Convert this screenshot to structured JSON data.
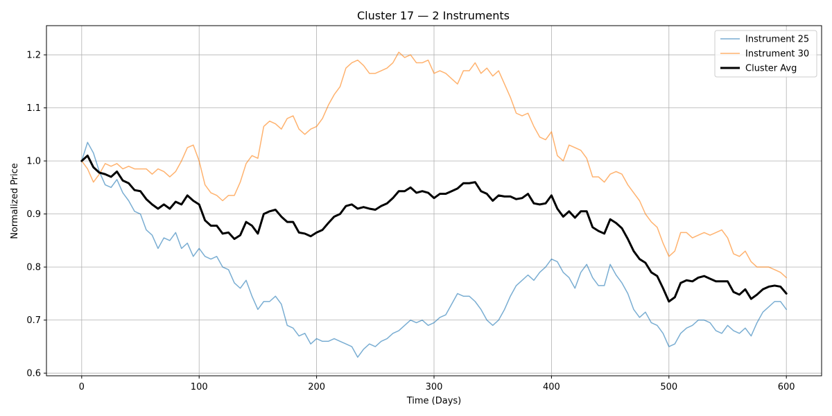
{
  "chart_data": {
    "type": "line",
    "title": "Cluster 17 — 2 Instruments",
    "xlabel": "Time (Days)",
    "ylabel": "Normalized Price",
    "xlim": [
      -30,
      630
    ],
    "ylim": [
      0.595,
      1.255
    ],
    "xticks": [
      0,
      100,
      200,
      300,
      400,
      500,
      600
    ],
    "yticks": [
      0.6,
      0.7,
      0.8,
      0.9,
      1.0,
      1.1,
      1.2
    ],
    "xtick_labels": [
      "0",
      "100",
      "200",
      "300",
      "400",
      "500",
      "600"
    ],
    "ytick_labels": [
      "0.6",
      "0.7",
      "0.8",
      "0.9",
      "1.0",
      "1.1",
      "1.2"
    ],
    "grid": true,
    "legend_position": "upper right",
    "series": [
      {
        "name": "Instrument 25",
        "color": "#1f77b4",
        "opacity": 0.6,
        "width": 1.5,
        "x": [
          0,
          5,
          10,
          15,
          20,
          25,
          30,
          35,
          40,
          45,
          50,
          55,
          60,
          65,
          70,
          75,
          80,
          85,
          90,
          95,
          100,
          105,
          110,
          115,
          120,
          125,
          130,
          135,
          140,
          145,
          150,
          155,
          160,
          165,
          170,
          175,
          180,
          185,
          190,
          195,
          200,
          205,
          210,
          215,
          220,
          225,
          230,
          235,
          240,
          245,
          250,
          255,
          260,
          265,
          270,
          275,
          280,
          285,
          290,
          295,
          300,
          305,
          310,
          315,
          320,
          325,
          330,
          335,
          340,
          345,
          350,
          355,
          360,
          365,
          370,
          375,
          380,
          385,
          390,
          395,
          400,
          405,
          410,
          415,
          420,
          425,
          430,
          435,
          440,
          445,
          450,
          455,
          460,
          465,
          470,
          475,
          480,
          485,
          490,
          495,
          500,
          505,
          510,
          515,
          520,
          525,
          530,
          535,
          540,
          545,
          550,
          555,
          560,
          565,
          570,
          575,
          580,
          585,
          590,
          595,
          600
        ],
        "values": [
          1.0,
          1.035,
          1.015,
          0.98,
          0.955,
          0.95,
          0.965,
          0.94,
          0.925,
          0.905,
          0.9,
          0.87,
          0.86,
          0.835,
          0.855,
          0.85,
          0.865,
          0.835,
          0.845,
          0.82,
          0.835,
          0.82,
          0.815,
          0.82,
          0.8,
          0.795,
          0.77,
          0.76,
          0.775,
          0.745,
          0.72,
          0.735,
          0.735,
          0.745,
          0.73,
          0.69,
          0.685,
          0.67,
          0.675,
          0.655,
          0.665,
          0.66,
          0.66,
          0.665,
          0.66,
          0.655,
          0.65,
          0.63,
          0.645,
          0.655,
          0.65,
          0.66,
          0.665,
          0.675,
          0.68,
          0.69,
          0.7,
          0.695,
          0.7,
          0.69,
          0.695,
          0.705,
          0.71,
          0.73,
          0.75,
          0.745,
          0.745,
          0.735,
          0.72,
          0.7,
          0.69,
          0.7,
          0.72,
          0.745,
          0.765,
          0.775,
          0.785,
          0.775,
          0.79,
          0.8,
          0.815,
          0.81,
          0.79,
          0.78,
          0.76,
          0.79,
          0.805,
          0.78,
          0.765,
          0.765,
          0.805,
          0.785,
          0.77,
          0.75,
          0.72,
          0.705,
          0.715,
          0.695,
          0.69,
          0.675,
          0.65,
          0.655,
          0.675,
          0.685,
          0.69,
          0.7,
          0.7,
          0.695,
          0.68,
          0.675,
          0.69,
          0.68,
          0.675,
          0.685,
          0.67,
          0.695,
          0.715,
          0.725,
          0.735,
          0.735,
          0.72
        ]
      },
      {
        "name": "Instrument 30",
        "color": "#ff7f0e",
        "opacity": 0.6,
        "width": 1.5,
        "x": [
          0,
          5,
          10,
          15,
          20,
          25,
          30,
          35,
          40,
          45,
          50,
          55,
          60,
          65,
          70,
          75,
          80,
          85,
          90,
          95,
          100,
          105,
          110,
          115,
          120,
          125,
          130,
          135,
          140,
          145,
          150,
          155,
          160,
          165,
          170,
          175,
          180,
          185,
          190,
          195,
          200,
          205,
          210,
          215,
          220,
          225,
          230,
          235,
          240,
          245,
          250,
          255,
          260,
          265,
          270,
          275,
          280,
          285,
          290,
          295,
          300,
          305,
          310,
          315,
          320,
          325,
          330,
          335,
          340,
          345,
          350,
          355,
          360,
          365,
          370,
          375,
          380,
          385,
          390,
          395,
          400,
          405,
          410,
          415,
          420,
          425,
          430,
          435,
          440,
          445,
          450,
          455,
          460,
          465,
          470,
          475,
          480,
          485,
          490,
          495,
          500,
          505,
          510,
          515,
          520,
          525,
          530,
          535,
          540,
          545,
          550,
          555,
          560,
          565,
          570,
          575,
          580,
          585,
          590,
          595,
          600
        ],
        "values": [
          1.0,
          0.985,
          0.96,
          0.975,
          0.995,
          0.99,
          0.995,
          0.985,
          0.99,
          0.985,
          0.985,
          0.985,
          0.975,
          0.985,
          0.98,
          0.97,
          0.98,
          1.0,
          1.025,
          1.03,
          1.0,
          0.955,
          0.94,
          0.935,
          0.925,
          0.935,
          0.935,
          0.96,
          0.995,
          1.01,
          1.005,
          1.065,
          1.075,
          1.07,
          1.06,
          1.08,
          1.085,
          1.06,
          1.05,
          1.06,
          1.065,
          1.08,
          1.105,
          1.125,
          1.14,
          1.175,
          1.185,
          1.19,
          1.18,
          1.165,
          1.165,
          1.17,
          1.175,
          1.185,
          1.205,
          1.195,
          1.2,
          1.185,
          1.185,
          1.19,
          1.165,
          1.17,
          1.165,
          1.155,
          1.145,
          1.17,
          1.17,
          1.185,
          1.165,
          1.175,
          1.16,
          1.17,
          1.145,
          1.12,
          1.09,
          1.085,
          1.09,
          1.065,
          1.045,
          1.04,
          1.055,
          1.01,
          1.0,
          1.03,
          1.025,
          1.02,
          1.005,
          0.97,
          0.97,
          0.96,
          0.975,
          0.98,
          0.975,
          0.955,
          0.94,
          0.925,
          0.9,
          0.885,
          0.875,
          0.845,
          0.82,
          0.83,
          0.865,
          0.865,
          0.855,
          0.86,
          0.865,
          0.86,
          0.865,
          0.87,
          0.855,
          0.825,
          0.82,
          0.83,
          0.81,
          0.8,
          0.8,
          0.8,
          0.795,
          0.79,
          0.78
        ]
      },
      {
        "name": "Cluster Avg",
        "color": "#000000",
        "opacity": 1.0,
        "width": 3,
        "x": [
          0,
          5,
          10,
          15,
          20,
          25,
          30,
          35,
          40,
          45,
          50,
          55,
          60,
          65,
          70,
          75,
          80,
          85,
          90,
          95,
          100,
          105,
          110,
          115,
          120,
          125,
          130,
          135,
          140,
          145,
          150,
          155,
          160,
          165,
          170,
          175,
          180,
          185,
          190,
          195,
          200,
          205,
          210,
          215,
          220,
          225,
          230,
          235,
          240,
          245,
          250,
          255,
          260,
          265,
          270,
          275,
          280,
          285,
          290,
          295,
          300,
          305,
          310,
          315,
          320,
          325,
          330,
          335,
          340,
          345,
          350,
          355,
          360,
          365,
          370,
          375,
          380,
          385,
          390,
          395,
          400,
          405,
          410,
          415,
          420,
          425,
          430,
          435,
          440,
          445,
          450,
          455,
          460,
          465,
          470,
          475,
          480,
          485,
          490,
          495,
          500,
          505,
          510,
          515,
          520,
          525,
          530,
          535,
          540,
          545,
          550,
          555,
          560,
          565,
          570,
          575,
          580,
          585,
          590,
          595,
          600
        ],
        "values": [
          1.0,
          1.01,
          0.988,
          0.978,
          0.975,
          0.97,
          0.98,
          0.963,
          0.958,
          0.945,
          0.943,
          0.928,
          0.918,
          0.91,
          0.918,
          0.91,
          0.923,
          0.918,
          0.935,
          0.925,
          0.918,
          0.888,
          0.878,
          0.878,
          0.863,
          0.865,
          0.853,
          0.86,
          0.885,
          0.878,
          0.863,
          0.9,
          0.905,
          0.908,
          0.895,
          0.885,
          0.885,
          0.865,
          0.863,
          0.858,
          0.865,
          0.87,
          0.883,
          0.895,
          0.9,
          0.915,
          0.918,
          0.91,
          0.913,
          0.91,
          0.908,
          0.915,
          0.92,
          0.93,
          0.943,
          0.943,
          0.95,
          0.94,
          0.943,
          0.94,
          0.93,
          0.938,
          0.938,
          0.943,
          0.948,
          0.958,
          0.958,
          0.96,
          0.943,
          0.938,
          0.925,
          0.935,
          0.933,
          0.933,
          0.928,
          0.93,
          0.938,
          0.92,
          0.918,
          0.92,
          0.935,
          0.91,
          0.895,
          0.905,
          0.893,
          0.905,
          0.905,
          0.875,
          0.868,
          0.863,
          0.89,
          0.883,
          0.873,
          0.853,
          0.83,
          0.815,
          0.808,
          0.79,
          0.783,
          0.76,
          0.735,
          0.743,
          0.77,
          0.775,
          0.773,
          0.78,
          0.783,
          0.778,
          0.773,
          0.773,
          0.773,
          0.753,
          0.748,
          0.758,
          0.74,
          0.748,
          0.758,
          0.763,
          0.765,
          0.763,
          0.75
        ]
      }
    ]
  }
}
